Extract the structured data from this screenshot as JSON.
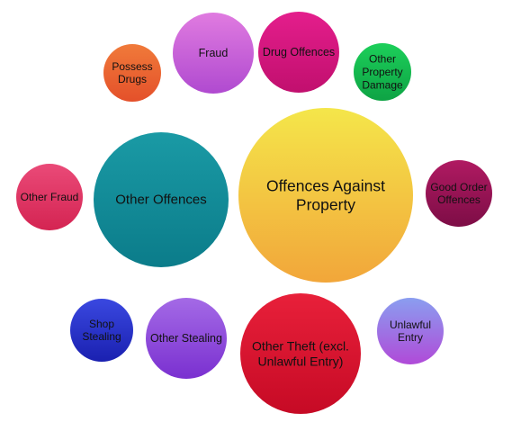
{
  "diagram": {
    "bubbles": [
      {
        "id": "offences-against-property",
        "lines": [
          "Offences Against",
          "Property"
        ],
        "colors": [
          "#f4e64a",
          "#f2a63a"
        ]
      },
      {
        "id": "other-offences",
        "lines": [
          "Other Offences"
        ],
        "colors": [
          "#1a9aa5",
          "#0b7c8a"
        ]
      },
      {
        "id": "other-theft",
        "lines": [
          "Other Theft (excl.",
          "Unlawful Entry)"
        ],
        "colors": [
          "#e8203a",
          "#c60a25"
        ]
      },
      {
        "id": "fraud",
        "lines": [
          "Fraud"
        ],
        "colors": [
          "#e07be0",
          "#b04ad0"
        ]
      },
      {
        "id": "drug-offences",
        "lines": [
          "Drug Offences"
        ],
        "colors": [
          "#e41e8c",
          "#c10f6e"
        ]
      },
      {
        "id": "possess-drugs",
        "lines": [
          "Possess",
          "Drugs"
        ],
        "colors": [
          "#f07a3a",
          "#e4502a"
        ]
      },
      {
        "id": "other-property-damage",
        "lines": [
          "Other",
          "Property",
          "Damage"
        ],
        "colors": [
          "#1ccf5a",
          "#0ea344"
        ]
      },
      {
        "id": "other-fraud",
        "lines": [
          "Other Fraud"
        ],
        "colors": [
          "#ea4a78",
          "#d42452"
        ]
      },
      {
        "id": "good-order-offences",
        "lines": [
          "Good Order",
          "Offences"
        ],
        "colors": [
          "#b01a62",
          "#7d0d46"
        ]
      },
      {
        "id": "shop-stealing",
        "lines": [
          "Shop",
          "Stealing"
        ],
        "colors": [
          "#3a48e0",
          "#1a20b0"
        ]
      },
      {
        "id": "other-stealing",
        "lines": [
          "Other Stealing"
        ],
        "colors": [
          "#a46ae6",
          "#7a30d0"
        ]
      },
      {
        "id": "unlawful-entry",
        "lines": [
          "Unlawful",
          "Entry"
        ],
        "colors": [
          "#8a9ef0",
          "#b04ad8"
        ]
      }
    ]
  }
}
